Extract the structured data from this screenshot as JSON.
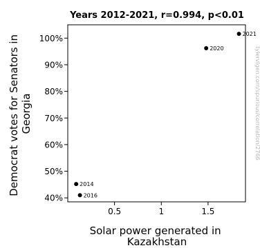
{
  "chart_data": {
    "type": "scatter",
    "title": "Years 2012-2021, r=0.994, p<0.01",
    "xlabel": [
      "Solar power generated in",
      "Kazakhstan"
    ],
    "ylabel": [
      "Democrat votes for Senators in",
      "Georgia"
    ],
    "xlim": [
      0.0,
      1.9
    ],
    "ylim": [
      38.5,
      105
    ],
    "xticks": [
      {
        "value": 0.5,
        "label": "0.5"
      },
      {
        "value": 1.0,
        "label": "1"
      },
      {
        "value": 1.5,
        "label": "1.5"
      }
    ],
    "yticks": [
      {
        "value": 40,
        "label": "40%"
      },
      {
        "value": 50,
        "label": "50%"
      },
      {
        "value": 60,
        "label": "60%"
      },
      {
        "value": 70,
        "label": "70%"
      },
      {
        "value": 80,
        "label": "80%"
      },
      {
        "value": 90,
        "label": "90%"
      },
      {
        "value": 100,
        "label": "100%"
      }
    ],
    "points": [
      {
        "label": "2014",
        "x": 0.09,
        "y": 45.2
      },
      {
        "label": "2016",
        "x": 0.13,
        "y": 41.0
      },
      {
        "label": "2020",
        "x": 1.48,
        "y": 96.2
      },
      {
        "label": "2021",
        "x": 1.83,
        "y": 101.6
      }
    ],
    "grid": false,
    "legend": "none"
  },
  "watermark": "tylervigen.com/spurious/correlation/2766"
}
